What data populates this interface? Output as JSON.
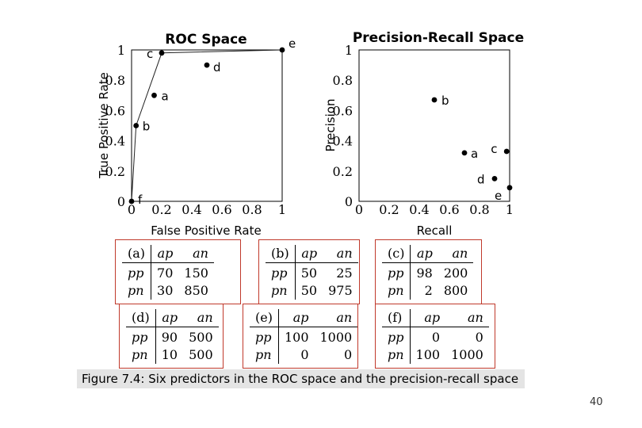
{
  "chart_data": [
    {
      "type": "scatter",
      "title": "ROC Space",
      "xlabel": "False Positive Rate",
      "ylabel": "True Positive Rate",
      "xlim": [
        0,
        1
      ],
      "ylim": [
        0,
        1
      ],
      "xticks": [
        "0",
        "0.2",
        "0.4",
        "0.6",
        "0.8",
        "1"
      ],
      "yticks": [
        "0",
        "0.2",
        "0.4",
        "0.6",
        "0.8",
        "1"
      ],
      "grid": false,
      "points": [
        {
          "label": "a",
          "x": 0.15,
          "y": 0.7
        },
        {
          "label": "b",
          "x": 0.03,
          "y": 0.5
        },
        {
          "label": "c",
          "x": 0.2,
          "y": 0.98
        },
        {
          "label": "d",
          "x": 0.5,
          "y": 0.9
        },
        {
          "label": "e",
          "x": 1.0,
          "y": 1.0
        },
        {
          "label": "f",
          "x": 0.0,
          "y": 0.0
        }
      ],
      "curve": [
        "f",
        "b",
        "c",
        "e"
      ]
    },
    {
      "type": "scatter",
      "title": "Precision-Recall Space",
      "xlabel": "Recall",
      "ylabel": "Precision",
      "xlim": [
        0,
        1
      ],
      "ylim": [
        0,
        1
      ],
      "xticks": [
        "0",
        "0.2",
        "0.4",
        "0.6",
        "0.8",
        "1"
      ],
      "yticks": [
        "0",
        "0.2",
        "0.4",
        "0.6",
        "0.8",
        "1"
      ],
      "grid": false,
      "points": [
        {
          "label": "a",
          "x": 0.7,
          "y": 0.32
        },
        {
          "label": "b",
          "x": 0.5,
          "y": 0.67
        },
        {
          "label": "c",
          "x": 0.98,
          "y": 0.33
        },
        {
          "label": "d",
          "x": 0.9,
          "y": 0.15
        },
        {
          "label": "e",
          "x": 1.0,
          "y": 0.09
        }
      ]
    }
  ],
  "confusion_tables": [
    {
      "label": "(a)",
      "cols": [
        "ap",
        "an"
      ],
      "rows": [
        {
          "name": "pp",
          "values": [
            "70",
            "150"
          ]
        },
        {
          "name": "pn",
          "values": [
            "30",
            "850"
          ]
        }
      ]
    },
    {
      "label": "(b)",
      "cols": [
        "ap",
        "an"
      ],
      "rows": [
        {
          "name": "pp",
          "values": [
            "50",
            "25"
          ]
        },
        {
          "name": "pn",
          "values": [
            "50",
            "975"
          ]
        }
      ]
    },
    {
      "label": "(c)",
      "cols": [
        "ap",
        "an"
      ],
      "rows": [
        {
          "name": "pp",
          "values": [
            "98",
            "200"
          ]
        },
        {
          "name": "pn",
          "values": [
            "2",
            "800"
          ]
        }
      ]
    },
    {
      "label": "(d)",
      "cols": [
        "ap",
        "an"
      ],
      "rows": [
        {
          "name": "pp",
          "values": [
            "90",
            "500"
          ]
        },
        {
          "name": "pn",
          "values": [
            "10",
            "500"
          ]
        }
      ]
    },
    {
      "label": "(e)",
      "cols": [
        "ap",
        "an"
      ],
      "rows": [
        {
          "name": "pp",
          "values": [
            "100",
            "1000"
          ]
        },
        {
          "name": "pn",
          "values": [
            "0",
            "0"
          ]
        }
      ]
    },
    {
      "label": "(f)",
      "cols": [
        "ap",
        "an"
      ],
      "rows": [
        {
          "name": "pp",
          "values": [
            "0",
            "0"
          ]
        },
        {
          "name": "pn",
          "values": [
            "100",
            "1000"
          ]
        }
      ]
    }
  ],
  "caption": "Figure 7.4: Six predictors in the ROC space and the precision-recall space",
  "page_number": "40"
}
